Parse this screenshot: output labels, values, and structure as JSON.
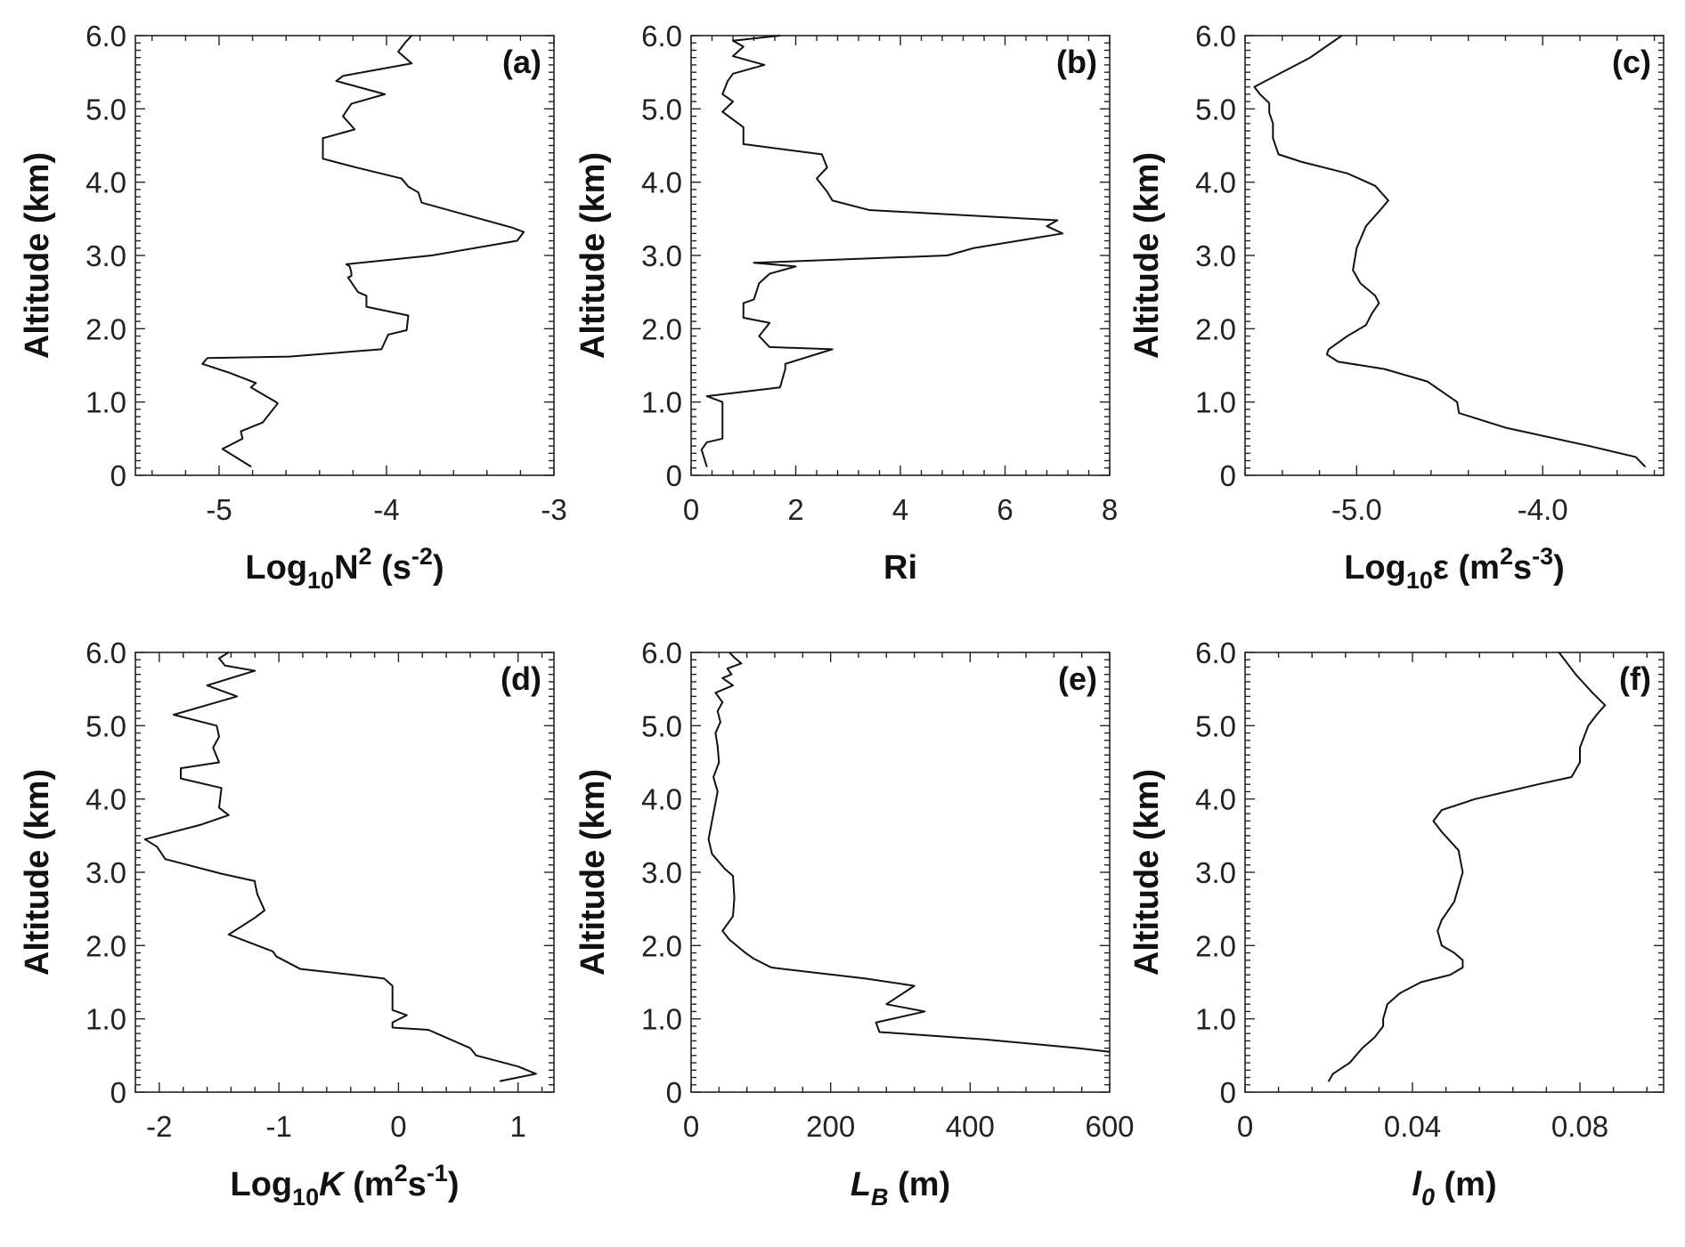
{
  "chart_data": [
    {
      "type": "line",
      "panel": "(a)",
      "xlabel": {
        "main": "Log",
        "sub": "10",
        "mid": "N",
        "sup": "2",
        "post": " (s",
        "sup2": "-2",
        "post2": ")"
      },
      "ylabel": "Altitude (km)",
      "xlim": [
        -5.5,
        -3
      ],
      "ylim": [
        0,
        6
      ],
      "xticks": [
        -5,
        -4,
        -3
      ],
      "xtick_labels": [
        "-5",
        "-4",
        "-3"
      ],
      "yticks": [
        0,
        1,
        2,
        3,
        4,
        5,
        6
      ],
      "ytick_labels": [
        "0",
        "1.0",
        "2.0",
        "3.0",
        "4.0",
        "5.0",
        "6.0"
      ],
      "series": [
        {
          "x": [
            -4.81,
            -4.98,
            -4.86,
            -4.87,
            -4.74,
            -4.65,
            -4.66,
            -4.81,
            -4.78,
            -4.94,
            -5.1,
            -5.07,
            -4.58,
            -4.03,
            -3.99,
            -3.88,
            -3.87,
            -4.12,
            -4.12,
            -4.17,
            -4.23,
            -4.21,
            -4.21,
            -4.22,
            -4.24,
            -3.73,
            -3.22,
            -3.18,
            -3.25,
            -3.79,
            -3.81,
            -3.87,
            -3.91,
            -4.18,
            -4.38,
            -4.38,
            -4.19,
            -4.26,
            -4.21,
            -4.01,
            -4.3,
            -4.26,
            -3.85,
            -3.93,
            -3.89,
            -3.85
          ],
          "y": [
            0.12,
            0.36,
            0.5,
            0.6,
            0.72,
            0.98,
            1.0,
            1.2,
            1.26,
            1.4,
            1.52,
            1.6,
            1.62,
            1.72,
            1.92,
            1.98,
            2.18,
            2.3,
            2.45,
            2.5,
            2.7,
            2.72,
            2.77,
            2.85,
            2.88,
            3.0,
            3.2,
            3.32,
            3.38,
            3.72,
            3.86,
            3.94,
            4.05,
            4.2,
            4.32,
            4.6,
            4.72,
            4.9,
            5.07,
            5.2,
            5.38,
            5.45,
            5.62,
            5.78,
            5.9,
            6.0
          ]
        }
      ]
    },
    {
      "type": "line",
      "panel": "(b)",
      "xlabel": {
        "main": "Ri"
      },
      "ylabel": "Altitude (km)",
      "xlim": [
        0,
        8
      ],
      "ylim": [
        0,
        6
      ],
      "xticks": [
        0,
        2,
        4,
        6,
        8
      ],
      "xtick_labels": [
        "0",
        "2",
        "4",
        "6",
        "8"
      ],
      "yticks": [
        0,
        1,
        2,
        3,
        4,
        5,
        6
      ],
      "ytick_labels": [
        "0",
        "1.0",
        "2.0",
        "3.0",
        "4.0",
        "5.0",
        "6.0"
      ],
      "series": [
        {
          "x": [
            0.3,
            0.2,
            0.3,
            0.6,
            0.6,
            0.3,
            1.7,
            1.8,
            1.8,
            2.7,
            1.5,
            1.3,
            1.5,
            1.0,
            1.0,
            1.2,
            1.3,
            1.5,
            2.0,
            1.2,
            4.9,
            5.4,
            7.1,
            6.8,
            7.0,
            3.4,
            2.7,
            2.6,
            2.4,
            2.6,
            2.5,
            1.0,
            1.0,
            0.6,
            0.8,
            0.6,
            0.7,
            0.8,
            1.4,
            0.8,
            1.0,
            0.8,
            1.7
          ],
          "y": [
            0.12,
            0.35,
            0.45,
            0.5,
            1.0,
            1.08,
            1.2,
            1.45,
            1.52,
            1.72,
            1.75,
            1.9,
            2.08,
            2.15,
            2.35,
            2.4,
            2.62,
            2.75,
            2.85,
            2.9,
            3.0,
            3.1,
            3.3,
            3.4,
            3.48,
            3.62,
            3.75,
            3.87,
            4.05,
            4.2,
            4.38,
            4.52,
            4.75,
            4.96,
            5.1,
            5.2,
            5.38,
            5.48,
            5.6,
            5.72,
            5.85,
            5.93,
            6.0
          ]
        }
      ]
    },
    {
      "type": "line",
      "panel": "(c)",
      "xlabel": {
        "main": "Log",
        "sub": "10",
        "mid": "ε",
        "post": " (m",
        "sup": "2",
        "post2": "s",
        "sup2": "-3",
        "post3": ")"
      },
      "ylabel": "Altitude (km)",
      "xlim": [
        -5.6,
        -3.35
      ],
      "ylim": [
        0,
        6
      ],
      "xticks": [
        -5.0,
        -4.0
      ],
      "xtick_labels": [
        "-5.0",
        "-4.0"
      ],
      "yticks": [
        0,
        1,
        2,
        3,
        4,
        5,
        6
      ],
      "ytick_labels": [
        "0",
        "1.0",
        "2.0",
        "3.0",
        "4.0",
        "5.0",
        "6.0"
      ],
      "series": [
        {
          "x": [
            -3.45,
            -3.5,
            -3.75,
            -4.2,
            -4.45,
            -4.46,
            -4.62,
            -4.85,
            -5.1,
            -5.16,
            -5.15,
            -5.05,
            -4.95,
            -4.92,
            -4.88,
            -4.9,
            -4.98,
            -5.02,
            -5.0,
            -4.95,
            -4.88,
            -4.83,
            -4.9,
            -5.05,
            -5.3,
            -5.42,
            -5.45,
            -5.45,
            -5.47,
            -5.47,
            -5.52,
            -5.55,
            -5.4,
            -5.25,
            -5.08
          ],
          "y": [
            0.12,
            0.25,
            0.4,
            0.65,
            0.85,
            1.0,
            1.28,
            1.45,
            1.55,
            1.65,
            1.72,
            1.9,
            2.05,
            2.2,
            2.35,
            2.45,
            2.62,
            2.8,
            3.1,
            3.4,
            3.6,
            3.75,
            3.95,
            4.12,
            4.28,
            4.38,
            4.6,
            4.8,
            4.95,
            5.08,
            5.2,
            5.3,
            5.5,
            5.7,
            6.0
          ]
        }
      ]
    },
    {
      "type": "line",
      "panel": "(d)",
      "xlabel": {
        "main": "Log",
        "sub": "10",
        "italic": "K",
        "post": " (m",
        "sup": "2",
        "post2": "s",
        "sup2": "-1",
        "post3": ")"
      },
      "ylabel": "Altitude (km)",
      "xlim": [
        -2.2,
        1.3
      ],
      "ylim": [
        0,
        6
      ],
      "xticks": [
        -2,
        -1,
        0,
        1
      ],
      "xtick_labels": [
        "-2",
        "-1",
        "0",
        "1"
      ],
      "yticks": [
        0,
        1,
        2,
        3,
        4,
        5,
        6
      ],
      "ytick_labels": [
        "0",
        "1.0",
        "2.0",
        "3.0",
        "4.0",
        "5.0",
        "6.0"
      ],
      "series": [
        {
          "x": [
            0.85,
            1.15,
            1.0,
            0.65,
            0.6,
            0.25,
            -0.05,
            -0.05,
            0.07,
            -0.05,
            -0.05,
            -0.12,
            -0.38,
            -0.82,
            -1.02,
            -1.05,
            -1.42,
            -1.2,
            -1.12,
            -1.18,
            -1.2,
            -1.2,
            -1.48,
            -1.95,
            -2.02,
            -2.12,
            -1.65,
            -1.42,
            -1.5,
            -1.48,
            -1.82,
            -1.82,
            -1.5,
            -1.55,
            -1.5,
            -1.52,
            -1.88,
            -1.35,
            -1.6,
            -1.2,
            -1.45,
            -1.5,
            -1.42
          ],
          "y": [
            0.15,
            0.25,
            0.35,
            0.5,
            0.6,
            0.85,
            0.88,
            0.95,
            1.05,
            1.12,
            1.45,
            1.55,
            1.6,
            1.68,
            1.85,
            1.92,
            2.15,
            2.38,
            2.48,
            2.7,
            2.85,
            2.88,
            2.98,
            3.18,
            3.35,
            3.45,
            3.65,
            3.78,
            3.88,
            4.15,
            4.28,
            4.42,
            4.5,
            4.7,
            4.85,
            5.0,
            5.15,
            5.4,
            5.55,
            5.75,
            5.82,
            5.92,
            6.0
          ]
        }
      ]
    },
    {
      "type": "line",
      "panel": "(e)",
      "xlabel": {
        "italic": "L",
        "italic_sub": "B",
        "post": " (m)"
      },
      "ylabel": "Altitude (km)",
      "xlim": [
        0,
        600
      ],
      "ylim": [
        0,
        6
      ],
      "xticks": [
        0,
        200,
        400,
        600
      ],
      "xtick_labels": [
        "0",
        "200",
        "400",
        "600"
      ],
      "yticks": [
        0,
        1,
        2,
        3,
        4,
        5,
        6
      ],
      "ytick_labels": [
        "0",
        "1.0",
        "2.0",
        "3.0",
        "4.0",
        "5.0",
        "6.0"
      ],
      "series": [
        {
          "x": [
            600,
            555,
            420,
            270,
            265,
            335,
            280,
            320,
            250,
            115,
            90,
            78,
            55,
            45,
            60,
            62,
            60,
            48,
            30,
            25,
            30,
            35,
            38,
            32,
            40,
            38,
            35,
            42,
            38,
            45,
            35,
            60,
            45,
            58,
            52,
            72,
            62,
            55
          ],
          "y": [
            0.55,
            0.6,
            0.72,
            0.82,
            0.95,
            1.1,
            1.2,
            1.45,
            1.55,
            1.7,
            1.82,
            1.9,
            2.08,
            2.2,
            2.4,
            2.65,
            2.95,
            3.05,
            3.25,
            3.45,
            3.7,
            3.95,
            4.1,
            4.3,
            4.5,
            4.72,
            4.9,
            5.05,
            5.2,
            5.32,
            5.45,
            5.55,
            5.65,
            5.7,
            5.78,
            5.85,
            5.93,
            6.0
          ]
        }
      ]
    },
    {
      "type": "line",
      "panel": "(f)",
      "xlabel": {
        "italic": "l",
        "italic_sub": "0",
        "post": " (m)"
      },
      "ylabel": "Altitude (km)",
      "xlim": [
        0,
        0.1
      ],
      "ylim": [
        0,
        6
      ],
      "xticks": [
        0,
        0.04,
        0.08
      ],
      "xtick_labels": [
        "0",
        "0.04",
        "0.08"
      ],
      "yticks": [
        0,
        1,
        2,
        3,
        4,
        5,
        6
      ],
      "ytick_labels": [
        "0",
        "1.0",
        "2.0",
        "3.0",
        "4.0",
        "5.0",
        "6.0"
      ],
      "series": [
        {
          "x": [
            0.02,
            0.021,
            0.025,
            0.028,
            0.031,
            0.033,
            0.033,
            0.034,
            0.037,
            0.042,
            0.049,
            0.052,
            0.052,
            0.05,
            0.047,
            0.046,
            0.047,
            0.05,
            0.052,
            0.051,
            0.047,
            0.045,
            0.047,
            0.055,
            0.07,
            0.078,
            0.08,
            0.08,
            0.081,
            0.082,
            0.084,
            0.086,
            0.083,
            0.079,
            0.075
          ],
          "y": [
            0.15,
            0.25,
            0.4,
            0.6,
            0.75,
            0.9,
            1.0,
            1.2,
            1.35,
            1.5,
            1.6,
            1.7,
            1.8,
            1.9,
            2.0,
            2.2,
            2.35,
            2.6,
            3.0,
            3.3,
            3.55,
            3.7,
            3.85,
            4.0,
            4.2,
            4.3,
            4.5,
            4.7,
            4.85,
            5.0,
            5.15,
            5.28,
            5.45,
            5.7,
            6.0
          ]
        }
      ]
    }
  ]
}
